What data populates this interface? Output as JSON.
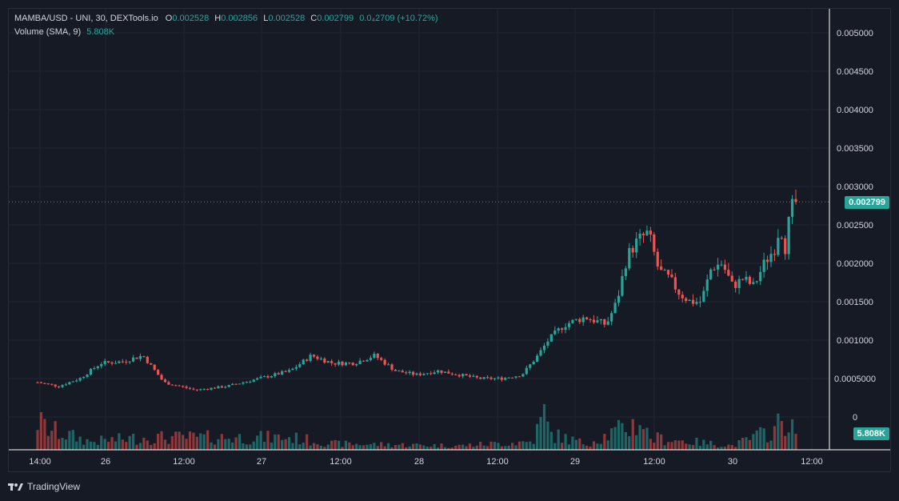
{
  "legend": {
    "symbol": "MAMBA/USD - UNI, 30, DEXTools.io",
    "open_label": "O",
    "open": "0.002528",
    "high_label": "H",
    "high": "0.002856",
    "low_label": "L",
    "low": "0.002528",
    "close_label": "C",
    "close": "0.002799",
    "change": "0.0₄2709 (+10.72%)",
    "volume_label": "Volume (SMA, 9)",
    "volume_value": "5.808K"
  },
  "price_tag": "0.002799",
  "volume_tag": "5.808K",
  "branding": "TradingView",
  "colors": {
    "up": "#26a69a",
    "down": "#ef5350",
    "background": "#161a25",
    "grid": "#222634"
  },
  "chart_data": {
    "type": "candlestick",
    "interval": "30",
    "x_tick_labels": [
      "14:00",
      "26",
      "12:00",
      "27",
      "12:00",
      "28",
      "12:00",
      "29",
      "12:00",
      "30",
      "12:00"
    ],
    "y_tick_labels": [
      "0.005000",
      "0.004500",
      "0.004000",
      "0.003500",
      "0.003000",
      "0.002500",
      "0.002000",
      "0.001500",
      "0.001000",
      "0.0005000",
      "0"
    ],
    "ylim": [
      0,
      0.005
    ],
    "last_price": 0.002799,
    "last_volume": "5.808K",
    "grid": true,
    "price_series_anchors": [
      [
        0.0,
        0.00045
      ],
      [
        2.0,
        0.0004
      ],
      [
        4.0,
        0.0005
      ],
      [
        6.0,
        0.0007
      ],
      [
        8.0,
        0.00072
      ],
      [
        10.0,
        0.0008
      ],
      [
        12.0,
        0.00045
      ],
      [
        15.0,
        0.00035
      ],
      [
        18.0,
        0.0004
      ],
      [
        21.0,
        0.0005
      ],
      [
        24.0,
        0.0006
      ],
      [
        26.0,
        0.0008
      ],
      [
        28.0,
        0.0007
      ],
      [
        30.0,
        0.0007
      ],
      [
        32.0,
        0.0008
      ],
      [
        34.0,
        0.0006
      ],
      [
        36.0,
        0.00055
      ],
      [
        38.0,
        0.0006
      ],
      [
        40.0,
        0.00055
      ],
      [
        42.0,
        0.0005
      ],
      [
        44.0,
        0.0005
      ],
      [
        46.0,
        0.00055
      ],
      [
        47.5,
        0.0008
      ],
      [
        48.5,
        0.001
      ],
      [
        50.0,
        0.0012
      ],
      [
        52.0,
        0.0013
      ],
      [
        54.0,
        0.0012
      ],
      [
        55.0,
        0.0015
      ],
      [
        56.0,
        0.0021
      ],
      [
        57.0,
        0.0023
      ],
      [
        58.0,
        0.0024
      ],
      [
        59.0,
        0.0019
      ],
      [
        60.0,
        0.0018
      ],
      [
        61.0,
        0.0016
      ],
      [
        62.0,
        0.0015
      ],
      [
        63.0,
        0.0015
      ],
      [
        64.0,
        0.00195
      ],
      [
        65.0,
        0.002
      ],
      [
        66.0,
        0.0017
      ],
      [
        67.0,
        0.0018
      ],
      [
        68.0,
        0.0017
      ],
      [
        69.0,
        0.002
      ],
      [
        70.0,
        0.0022
      ],
      [
        70.5,
        0.0025
      ],
      [
        71.0,
        0.0022
      ],
      [
        71.5,
        0.0027
      ],
      [
        72.0,
        0.0028
      ]
    ],
    "volume_series_anchors": [
      [
        0.0,
        0.7
      ],
      [
        1.0,
        0.5
      ],
      [
        5.0,
        0.2
      ],
      [
        10.0,
        0.3
      ],
      [
        16.0,
        0.3
      ],
      [
        24.0,
        0.3
      ],
      [
        28.0,
        0.15
      ],
      [
        40.0,
        0.1
      ],
      [
        47.0,
        0.2
      ],
      [
        48.3,
        1.0
      ],
      [
        48.5,
        0.4
      ],
      [
        52.0,
        0.15
      ],
      [
        57.5,
        0.7
      ],
      [
        58.0,
        0.3
      ],
      [
        66.0,
        0.1
      ],
      [
        70.0,
        0.5
      ],
      [
        71.0,
        0.8
      ],
      [
        72.0,
        0.35
      ]
    ]
  }
}
